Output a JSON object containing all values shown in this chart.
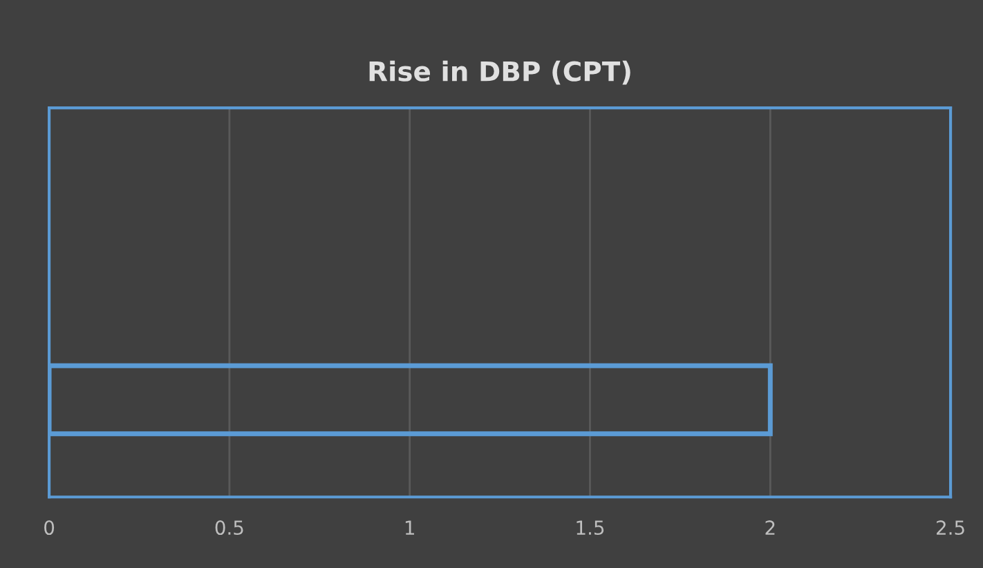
{
  "chart_data": {
    "type": "bar",
    "orientation": "horizontal",
    "title": "Rise in DBP (CPT)",
    "categories": [
      null,
      null
    ],
    "series": [
      {
        "color": "#5b9bd5",
        "values": [
          null,
          2
        ]
      }
    ],
    "xlim": [
      0,
      2.5
    ],
    "xticks": [
      0,
      0.5,
      1,
      1.5,
      2,
      2.5
    ],
    "grid": "x",
    "legend": false,
    "tick_labels": "x"
  }
}
